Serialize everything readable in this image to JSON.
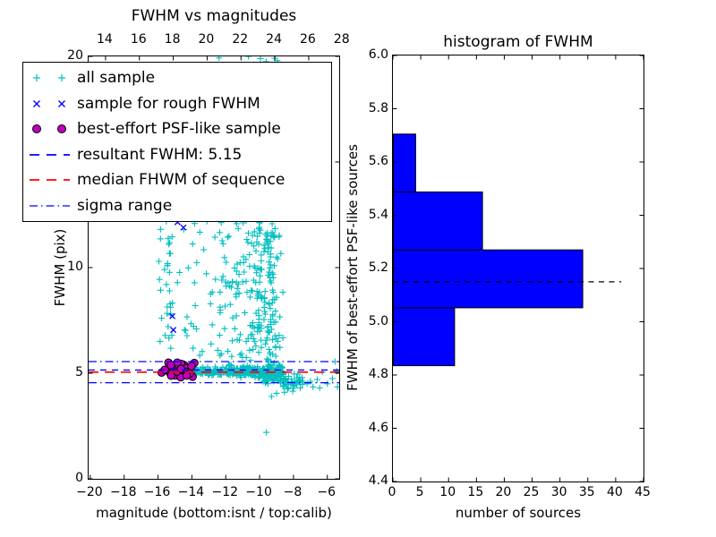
{
  "figure": {
    "background": "#ffffff",
    "text_color": "#000000"
  },
  "colors": {
    "all_sample": "#00BFBF",
    "rough_sample": "#0000FF",
    "psf_sample": "#BF00BF",
    "psf_edge": "#000000",
    "resultant_line": "#0000FF",
    "median_line": "#FF0000",
    "sigma_line": "#0000FF",
    "hist_bar": "#0000FF",
    "hist_dash": "#000000"
  },
  "legend": {
    "entries": [
      {
        "label": "all sample",
        "sample": "plus2",
        "color": "#00BFBF"
      },
      {
        "label": "sample for rough FWHM",
        "sample": "x2",
        "color": "#0000FF"
      },
      {
        "label": "best-effort PSF-like sample",
        "sample": "circle2",
        "color": "#BF00BF"
      },
      {
        "label": "resultant FWHM: 5.15",
        "sample": "dash",
        "color": "#0000FF"
      },
      {
        "label": "median FHWM of sequence",
        "sample": "dash",
        "color": "#FF0000"
      },
      {
        "label": "sigma range",
        "sample": "dashdot",
        "color": "#0000FF"
      }
    ]
  },
  "chart_data": [
    {
      "type": "scatter",
      "title": "FWHM vs magnitudes",
      "xlabel": "magnitude (bottom:isnt / top:calib)",
      "ylabel": "FWHM (pix)",
      "xlim": [
        -20.1,
        -5.3
      ],
      "ylim": [
        0,
        20
      ],
      "bottom_ticks": [
        -20,
        -18,
        -16,
        -14,
        -12,
        -10,
        -8,
        -6
      ],
      "top_ticks": [
        14,
        16,
        18,
        20,
        22,
        24,
        26,
        28
      ],
      "top_axis_offset": 33.1,
      "y_ticks": [
        0,
        5,
        10,
        15,
        20
      ],
      "lines": {
        "resultant_fwhm": 5.15,
        "median_fwhm": 5.05,
        "sigma_range": [
          5.55,
          4.55
        ]
      },
      "series": [
        {
          "name": "all sample",
          "marker": "plus",
          "color": "#00BFBF",
          "clusters": [
            {
              "n": 90,
              "x": {
                "kind": "u",
                "a": -14.45,
                "b": -12.0
              },
              "y": {
                "kind": "g",
                "mu": 5.08,
                "sd": 0.1
              }
            },
            {
              "n": 130,
              "x": {
                "kind": "u",
                "a": -12.0,
                "b": -10.1
              },
              "y": {
                "kind": "g",
                "mu": 5.1,
                "sd": 0.13
              }
            },
            {
              "n": 110,
              "x": {
                "kind": "u",
                "a": -10.1,
                "b": -8.55
              },
              "y": {
                "kind": "g",
                "mu": 5.02,
                "sd": 0.2
              }
            },
            {
              "n": 40,
              "x": {
                "kind": "u",
                "a": -8.8,
                "b": -7.45
              },
              "y": {
                "kind": "g",
                "mu": 4.62,
                "sd": 0.22
              }
            },
            {
              "n": 210,
              "x": {
                "kind": "g",
                "mu": -9.35,
                "sd": 0.33,
                "min": -10.4,
                "max": -8.55
              },
              "y": {
                "kind": "pow",
                "a": 4.35,
                "b": 20.0,
                "p": 1.15
              }
            },
            {
              "n": 130,
              "x": {
                "kind": "pow",
                "a": -9.9,
                "b": -12.4,
                "p": 1.4
              },
              "y": {
                "kind": "u",
                "a": 5.6,
                "b": 12.3
              }
            },
            {
              "n": 50,
              "x": {
                "kind": "u",
                "a": -16.0,
                "b": -12.4
              },
              "y": {
                "kind": "u",
                "a": 5.8,
                "b": 12.3
              }
            },
            {
              "n": 14,
              "x": {
                "kind": "g",
                "mu": -15.35,
                "sd": 0.13,
                "min": -15.7,
                "max": -15.0
              },
              "y": {
                "kind": "u",
                "a": 6.0,
                "b": 11.9
              }
            },
            {
              "n": 30,
              "x": {
                "kind": "u",
                "a": -16.0,
                "b": -9.5
              },
              "y": {
                "kind": "u",
                "a": 12.3,
                "b": 19.9
              }
            }
          ],
          "points": [
            [
              -9.6,
              2.2
            ],
            [
              -10.66,
              20.0
            ],
            [
              -9.95,
              19.9
            ],
            [
              -12.4,
              19.93
            ],
            [
              -7.2,
              4.5
            ],
            [
              -7.0,
              4.62
            ],
            [
              -6.85,
              4.35
            ],
            [
              -6.6,
              4.7
            ],
            [
              -6.3,
              5.05
            ],
            [
              -6.0,
              4.5
            ],
            [
              -5.7,
              4.75
            ],
            [
              -5.55,
              5.55
            ],
            [
              -5.45,
              5.1
            ],
            [
              -5.4,
              4.35
            ],
            [
              -7.6,
              4.3
            ],
            [
              -8.05,
              4.15
            ],
            [
              -8.3,
              4.3
            ],
            [
              -7.8,
              4.45
            ],
            [
              -6.45,
              4.3
            ],
            [
              -9.3,
              3.9
            ],
            [
              -9.0,
              4.05
            ]
          ]
        },
        {
          "name": "sample for rough FWHM",
          "marker": "x",
          "color": "#0000FF",
          "points": [
            [
              -15.15,
              7.7
            ],
            [
              -15.1,
              7.05
            ],
            [
              -14.5,
              11.9
            ],
            [
              -14.85,
              12.15
            ],
            [
              -15.35,
              5.25
            ],
            [
              -15.05,
              5.1
            ],
            [
              -14.7,
              5.3
            ],
            [
              -14.35,
              5.05
            ],
            [
              -14.95,
              4.9
            ],
            [
              -14.55,
              5.45
            ]
          ]
        },
        {
          "name": "best-effort PSF-like sample",
          "marker": "circle",
          "color": "#BF00BF",
          "clusters": [
            {
              "n": 30,
              "x": {
                "kind": "u",
                "a": -15.8,
                "b": -13.85
              },
              "y": {
                "kind": "g",
                "mu": 5.12,
                "sd": 0.17,
                "min": 4.75,
                "max": 5.5
              }
            }
          ]
        }
      ]
    },
    {
      "type": "histogram-horizontal",
      "title": "histogram of FWHM",
      "xlabel": "number of sources",
      "ylabel": "FWHM of best-effort PSF-like sources",
      "xlim": [
        0,
        45
      ],
      "ylim": [
        4.4,
        6.0
      ],
      "x_ticks": [
        0,
        5,
        10,
        15,
        20,
        25,
        30,
        35,
        40,
        45
      ],
      "y_ticks": [
        4.4,
        4.6,
        4.8,
        5.0,
        5.2,
        5.4,
        5.6,
        5.8,
        6.0
      ],
      "bin_edges": [
        4.835,
        5.0525,
        5.27,
        5.4875,
        5.705
      ],
      "counts": [
        11,
        34,
        16,
        4
      ],
      "dashed_line": {
        "y": 5.15,
        "x_start": 0,
        "x_end": 41
      }
    }
  ]
}
